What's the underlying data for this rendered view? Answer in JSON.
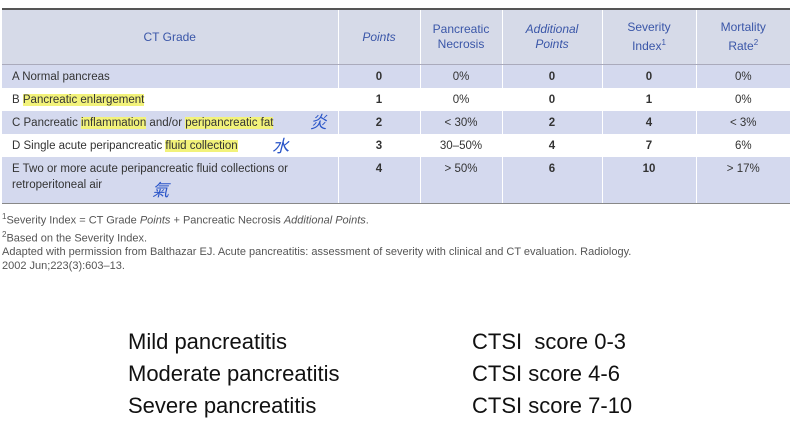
{
  "table": {
    "headers": {
      "grade": "CT Grade",
      "points": "Points",
      "necrosis_l1": "Pancreatic",
      "necrosis_l2": "Necrosis",
      "additional_l1": "Additional",
      "additional_l2": "Points",
      "severity_l1": "Severity",
      "severity_l2": "Index",
      "severity_sup": "1",
      "mortality_l1": "Mortality",
      "mortality_l2": "Rate",
      "mortality_sup": "2"
    },
    "rows": [
      {
        "grade_pre": "A Normal pancreas",
        "grade_hl": "",
        "grade_post": "",
        "points": "0",
        "necrosis": "0%",
        "additional": "0",
        "severity": "0",
        "mortality": "0%"
      },
      {
        "grade_pre": "B ",
        "grade_hl": "Pancreatic enlargement",
        "grade_post": "",
        "points": "1",
        "necrosis": "0%",
        "additional": "0",
        "severity": "1",
        "mortality": "0%"
      },
      {
        "grade_pre": "C Pancreatic ",
        "grade_hl": "inflammation",
        "grade_mid": " and/or ",
        "grade_hl2": "peripancreatic fat",
        "points": "2",
        "necrosis": "< 30%",
        "additional": "2",
        "severity": "4",
        "mortality": "< 3%"
      },
      {
        "grade_pre": "D Single acute peripancreatic ",
        "grade_hl": "fluid collection",
        "grade_post": "",
        "points": "3",
        "necrosis": "30–50%",
        "additional": "4",
        "severity": "7",
        "mortality": "6%"
      },
      {
        "grade_pre": "E Two or more acute peripancreatic fluid collections or",
        "grade_line2": "retroperitoneal air",
        "points": "4",
        "necrosis": "> 50%",
        "additional": "6",
        "severity": "10",
        "mortality": "> 17%"
      }
    ]
  },
  "annotations": {
    "row_c": "炎",
    "row_d": "水",
    "row_e": "氣"
  },
  "notes": {
    "n1_sup": "1",
    "n1_a": "Severity Index = CT Grade ",
    "n1_b": "Points",
    "n1_c": " + Pancreatic Necrosis ",
    "n1_d": "Additional Points",
    "n1_e": ".",
    "n2_sup": "2",
    "n2": "Based on the Severity Index.",
    "n3": "Adapted with permission from Balthazar EJ. Acute pancreatitis: assessment of severity with clinical and CT evaluation. Radiology.",
    "n4": "2002 Jun;223(3):603–13."
  },
  "severity": [
    {
      "label": "Mild pancreatitis",
      "score": "CTSI  score 0-3"
    },
    {
      "label": "Moderate pancreatitis",
      "score": "CTSI score 4-6"
    },
    {
      "label": "Severe pancreatitis",
      "score": "CTSI score 7-10"
    }
  ]
}
